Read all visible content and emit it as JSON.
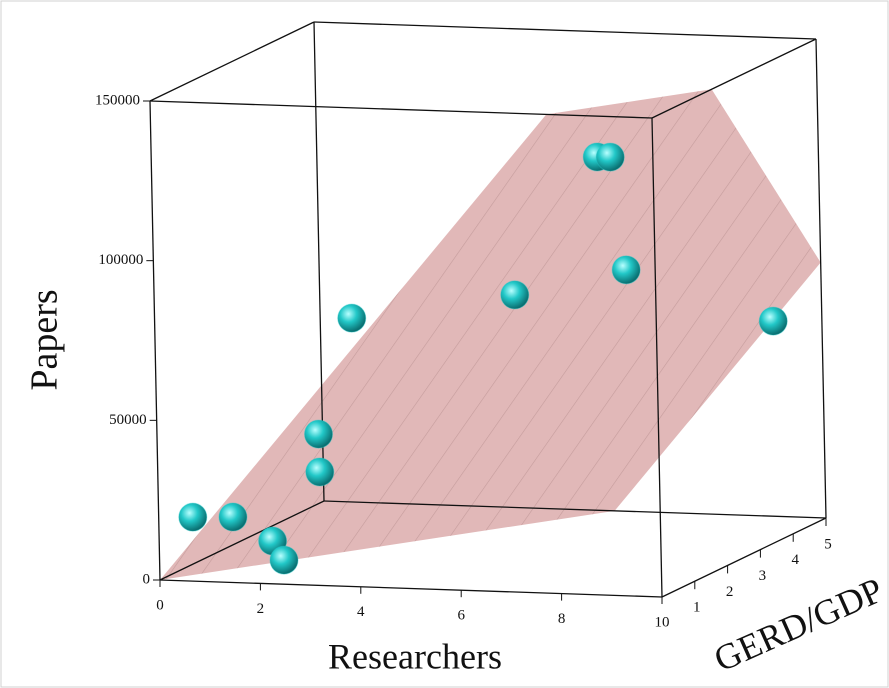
{
  "chart_data": {
    "type": "scatter3d",
    "xlabel": "Researchers",
    "ylabel": "GERD/GDP",
    "zlabel": "Papers",
    "xlim": [
      0,
      10
    ],
    "ylim": [
      0,
      5
    ],
    "zlim": [
      0,
      150000
    ],
    "xticks": [
      0,
      2,
      4,
      6,
      8,
      10
    ],
    "yticks": [
      1,
      2,
      3,
      4,
      5
    ],
    "zticks": [
      0,
      50000,
      100000,
      150000
    ],
    "series": [
      {
        "color": "#22c8c8",
        "x": [
          0.35,
          0.82,
          1.6,
          2.15,
          1.9,
          2.24,
          1.95,
          5.87,
          6.91,
          7.17,
          7.11,
          9.36
        ],
        "y": [
          0.5,
          1,
          1,
          0.5,
          2,
          1.5,
          3,
          2,
          3,
          3,
          3.5,
          4.5
        ],
        "z": [
          17400,
          15200,
          8100,
          4900,
          36800,
          27600,
          68200,
          82500,
          121300,
          121400,
          83600,
          63800
        ]
      }
    ],
    "plane": {
      "intercept": 0,
      "x_coef": 19000,
      "y_coef": -22000,
      "color": "#d9a6a6"
    }
  }
}
